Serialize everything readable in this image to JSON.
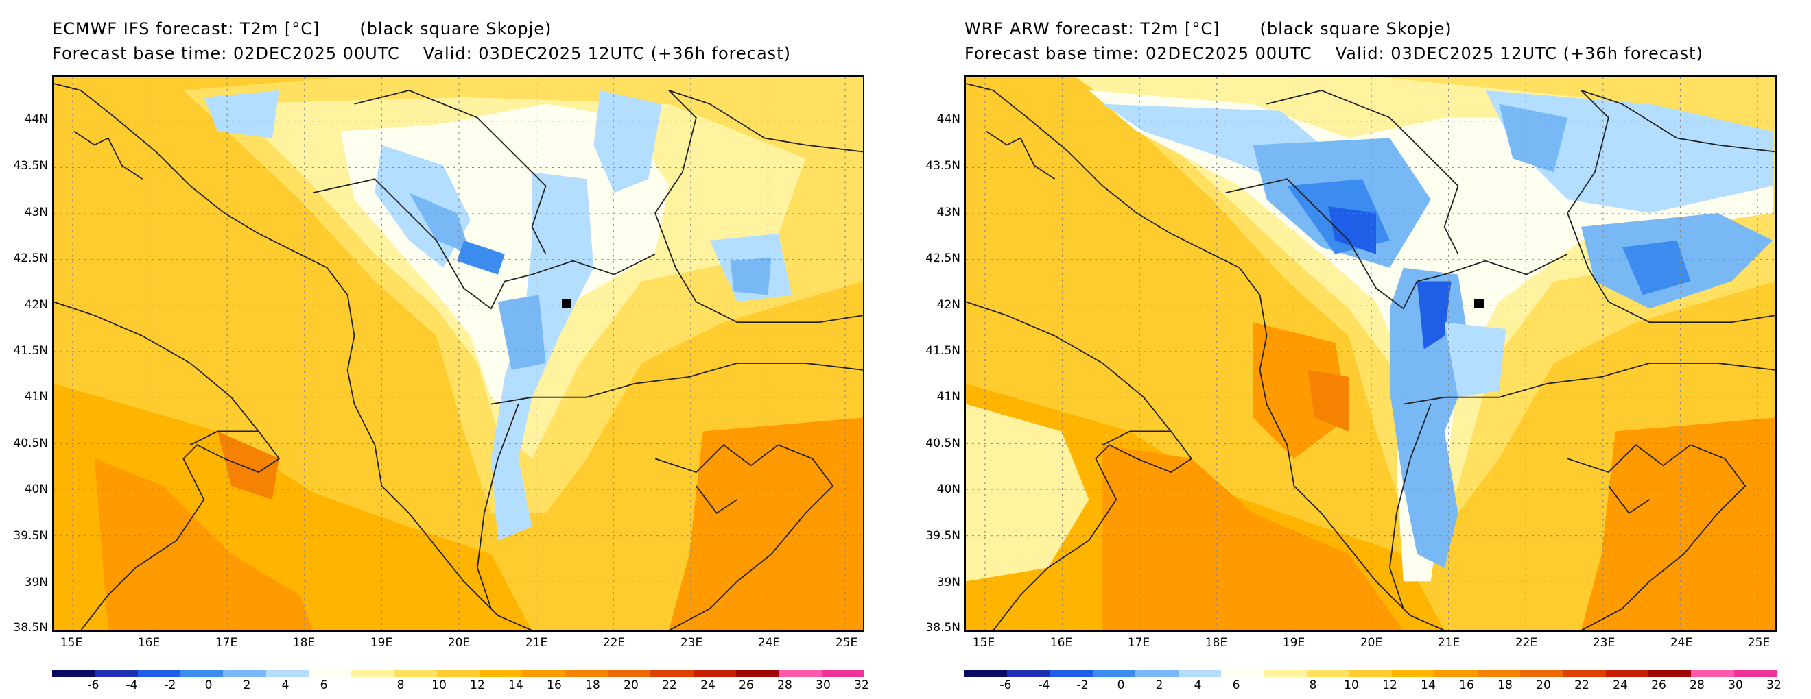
{
  "panels": [
    {
      "id": "ecmwf",
      "title": "ECMWF IFS forecast: T2m [°C]",
      "subject": "(black square Skopje)",
      "base_time": "Forecast base time: 02DEC2025 00UTC",
      "valid": "Valid: 03DEC2025 12UTC (+36h forecast)"
    },
    {
      "id": "wrf",
      "title": "WRF ARW forecast: T2m [°C]",
      "subject": "(black square Skopje)",
      "base_time": "Forecast base time: 02DEC2025 00UTC",
      "valid": "Valid: 03DEC2025 12UTC (+36h forecast)"
    }
  ],
  "lat_labels": [
    "44N",
    "43.5N",
    "43N",
    "42.5N",
    "42N",
    "41.5N",
    "41N",
    "40.5N",
    "40N",
    "39.5N",
    "39N",
    "38.5N"
  ],
  "lon_labels": [
    "15E",
    "16E",
    "17E",
    "18E",
    "19E",
    "20E",
    "21E",
    "22E",
    "23E",
    "24E",
    "25E"
  ],
  "colorbar": {
    "colors": [
      "#0a0a64",
      "#1f2fb4",
      "#1f5ee6",
      "#3c8cf0",
      "#78b9f5",
      "#b4deff",
      "#fffff0",
      "#fff3a0",
      "#ffe060",
      "#ffcc30",
      "#ffb400",
      "#ff9b00",
      "#f58200",
      "#eb6900",
      "#dc4100",
      "#c81e00",
      "#a00000",
      "#ff5aaa",
      "#f0329b"
    ],
    "labels": [
      "-6",
      "-4",
      "-2",
      "0",
      "2",
      "4",
      "6",
      "8",
      "10",
      "12",
      "14",
      "16",
      "18",
      "20",
      "22",
      "24",
      "26",
      "28",
      "30",
      "32"
    ]
  },
  "skopje": {
    "lat": 42.0,
    "lon": 21.43
  }
}
